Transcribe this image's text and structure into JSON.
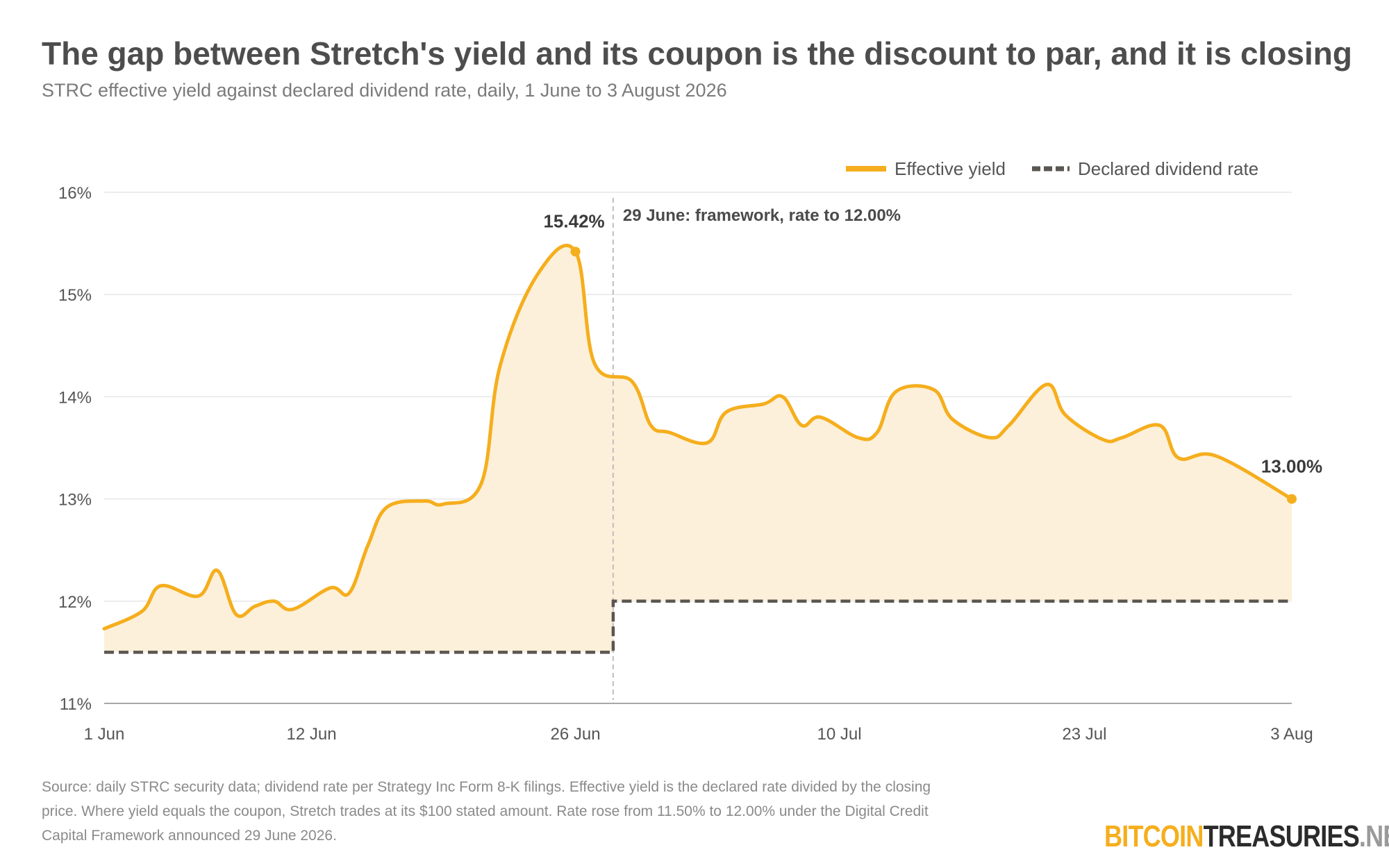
{
  "title": "The gap between Stretch's yield and its coupon is the discount to par, and it is closing",
  "subtitle": "STRC effective yield against declared dividend rate, daily, 1 June to 3 August 2026",
  "source": "Source: daily STRC security data; dividend rate per Strategy Inc Form 8-K filings. Effective yield is the declared rate divided by the closing price. Where yield equals the coupon, Stretch trades at its $100 stated amount. Rate rose from 11.50% to 12.00% under the Digital Credit Capital Framework announced 29 June 2026.",
  "logo": {
    "part1": "BITCOIN",
    "part2": "TREASURIES",
    "part3": ".NET"
  },
  "colors": {
    "yield": "#f5ae1d",
    "yield_fill": "#fdf0da",
    "dividend": "#5a5652",
    "grid": "#e6e6e6",
    "event_line": "#bdbdbd"
  },
  "chart_data": {
    "type": "line",
    "x_start": "2026-06-01",
    "x_end": "2026-08-03",
    "ylim": [
      11,
      16
    ],
    "yticks": [
      11,
      12,
      13,
      14,
      15,
      16
    ],
    "ytick_labels": [
      "11%",
      "12%",
      "13%",
      "14%",
      "15%",
      "16%"
    ],
    "xticks": [
      "2026-06-01",
      "2026-06-12",
      "2026-06-26",
      "2026-07-10",
      "2026-07-23",
      "2026-08-03"
    ],
    "xtick_labels": [
      "1 Jun",
      "12 Jun",
      "26 Jun",
      "10 Jul",
      "23 Jul",
      "3 Aug"
    ],
    "grid": true,
    "legend_position": "top-right",
    "series": [
      {
        "name": "Effective yield",
        "style": "solid",
        "points": [
          [
            "2026-06-01",
            11.73
          ],
          [
            "2026-06-03",
            11.9
          ],
          [
            "2026-06-04",
            12.15
          ],
          [
            "2026-06-06",
            12.05
          ],
          [
            "2026-06-07",
            12.3
          ],
          [
            "2026-06-08",
            11.87
          ],
          [
            "2026-06-09",
            11.95
          ],
          [
            "2026-06-10",
            12.0
          ],
          [
            "2026-06-11",
            11.92
          ],
          [
            "2026-06-13",
            12.13
          ],
          [
            "2026-06-14",
            12.08
          ],
          [
            "2026-06-15",
            12.55
          ],
          [
            "2026-06-16",
            12.92
          ],
          [
            "2026-06-18",
            12.98
          ],
          [
            "2026-06-19",
            12.95
          ],
          [
            "2026-06-21",
            13.15
          ],
          [
            "2026-06-22",
            14.3
          ],
          [
            "2026-06-24",
            15.2
          ],
          [
            "2026-06-26",
            15.42
          ],
          [
            "2026-06-27",
            14.33
          ],
          [
            "2026-06-29",
            14.15
          ],
          [
            "2026-06-30",
            13.72
          ],
          [
            "2026-07-01",
            13.65
          ],
          [
            "2026-07-03",
            13.55
          ],
          [
            "2026-07-04",
            13.85
          ],
          [
            "2026-07-06",
            13.93
          ],
          [
            "2026-07-07",
            14.0
          ],
          [
            "2026-07-08",
            13.72
          ],
          [
            "2026-07-09",
            13.8
          ],
          [
            "2026-07-11",
            13.6
          ],
          [
            "2026-07-12",
            13.65
          ],
          [
            "2026-07-13",
            14.05
          ],
          [
            "2026-07-15",
            14.07
          ],
          [
            "2026-07-16",
            13.78
          ],
          [
            "2026-07-18",
            13.6
          ],
          [
            "2026-07-19",
            13.72
          ],
          [
            "2026-07-21",
            14.12
          ],
          [
            "2026-07-22",
            13.82
          ],
          [
            "2026-07-24",
            13.58
          ],
          [
            "2026-07-25",
            13.6
          ],
          [
            "2026-07-27",
            13.72
          ],
          [
            "2026-07-28",
            13.4
          ],
          [
            "2026-07-30",
            13.42
          ],
          [
            "2026-08-03",
            13.0
          ]
        ]
      },
      {
        "name": "Declared dividend rate",
        "style": "dashed",
        "points": [
          [
            "2026-06-01",
            11.5
          ],
          [
            "2026-06-28",
            11.5
          ],
          [
            "2026-06-28",
            12.0
          ],
          [
            "2026-08-03",
            12.0
          ]
        ]
      }
    ],
    "markers": [
      {
        "date": "2026-06-26",
        "value": 15.42,
        "label": "15.42%"
      },
      {
        "date": "2026-08-03",
        "value": 13.0,
        "label": "13.00%"
      }
    ],
    "event": {
      "date": "2026-06-28",
      "label": "29 June: framework, rate to 12.00%"
    }
  }
}
